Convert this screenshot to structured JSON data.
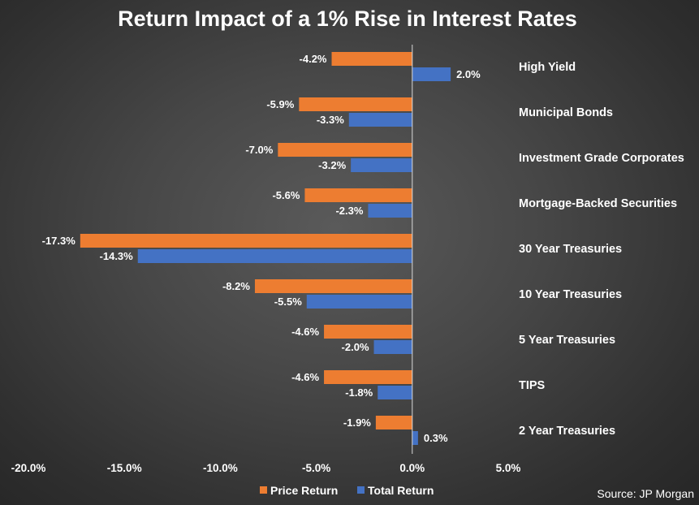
{
  "chart_data": {
    "type": "bar",
    "orientation": "horizontal",
    "title": "Return Impact of a 1% Rise in Interest Rates",
    "categories": [
      "High Yield",
      "Municipal Bonds",
      "Investment Grade Corporates",
      "Mortgage-Backed Securities",
      "30 Year Treasuries",
      "10 Year Treasuries",
      "5 Year Treasuries",
      "TIPS",
      "2 Year Treasuries"
    ],
    "series": [
      {
        "name": "Price Return",
        "color": "#ED7D31",
        "values": [
          -4.2,
          -5.9,
          -7.0,
          -5.6,
          -17.3,
          -8.2,
          -4.6,
          -4.6,
          -1.9
        ],
        "labels": [
          "-4.2%",
          "-5.9%",
          "-7.0%",
          "-5.6%",
          "-17.3%",
          "-8.2%",
          "-4.6%",
          "-4.6%",
          "-1.9%"
        ]
      },
      {
        "name": "Total Return",
        "color": "#4472C4",
        "values": [
          2.0,
          -3.3,
          -3.2,
          -2.3,
          -14.3,
          -5.5,
          -2.0,
          -1.8,
          0.3
        ],
        "labels": [
          "2.0%",
          "-3.3%",
          "-3.2%",
          "-2.3%",
          "-14.3%",
          "-5.5%",
          "-2.0%",
          "-1.8%",
          "0.3%"
        ]
      }
    ],
    "xlim": [
      -20,
      5
    ],
    "x_ticks": [
      -20,
      -15,
      -10,
      -5,
      0,
      5
    ],
    "x_tick_labels": [
      "-20.0%",
      "-15.0%",
      "-10.0%",
      "-5.0%",
      "0.0%",
      "5.0%"
    ],
    "grid": false,
    "legend_position": "bottom",
    "source": "Source: JP Morgan"
  }
}
